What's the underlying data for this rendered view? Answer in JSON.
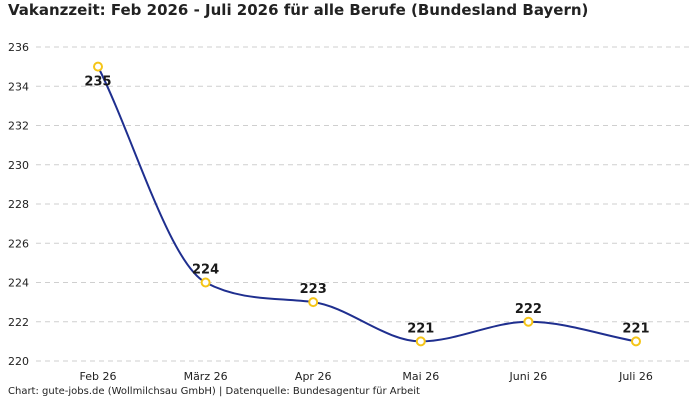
{
  "title": "Vakanzzeit: Feb 2026 - Juli 2026 für alle Berufe (Bundesland Bayern)",
  "footer": "Chart: gute-jobs.de (Wollmilchsau GmbH) | Datenquelle: Bundesagentur für Arbeit",
  "chart_data": {
    "type": "line",
    "title": "Vakanzzeit: Feb 2026 - Juli 2026 für alle Berufe (Bundesland Bayern)",
    "categories": [
      "Feb 26",
      "März 26",
      "Apr 26",
      "Mai 26",
      "Juni 26",
      "Juli 26"
    ],
    "series": [
      {
        "values": [
          235,
          224,
          223,
          221,
          222,
          221
        ],
        "color": "#1f2f8f",
        "marker_color": "#f5c518"
      }
    ],
    "data_labels": [
      "235",
      "224",
      "223",
      "221",
      "222",
      "221"
    ],
    "y_ticks": [
      "220",
      "222",
      "224",
      "226",
      "228",
      "230",
      "232",
      "234",
      "236"
    ],
    "ylim": [
      220,
      236
    ],
    "grid": true,
    "grid_style": "dashed",
    "legend": "none"
  }
}
